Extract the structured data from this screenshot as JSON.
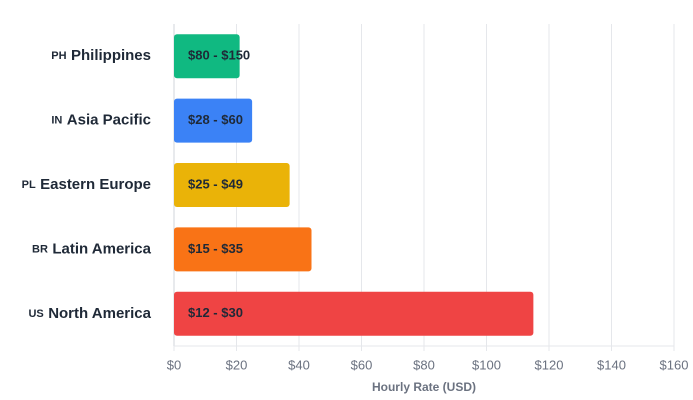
{
  "chart_data": {
    "type": "bar",
    "orientation": "horizontal",
    "codes": [
      "PH",
      "IN",
      "PL",
      "BR",
      "US"
    ],
    "categories": [
      "Philippines",
      "Asia Pacific",
      "Eastern Europe",
      "Latin America",
      "North America"
    ],
    "values": [
      21,
      25,
      37,
      44,
      115
    ],
    "annotations": [
      "$80 - $150",
      "$28 - $60",
      "$25 - $49",
      "$15 - $35",
      "$12 - $30"
    ],
    "colors": [
      "#10b981",
      "#3b82f6",
      "#eab308",
      "#f97316",
      "#ef4444"
    ],
    "xlabel": "Hourly Rate (USD)",
    "xlim": [
      0,
      160
    ],
    "xticks": [
      {
        "value": 0,
        "label": "$0"
      },
      {
        "value": 20,
        "label": "$20"
      },
      {
        "value": 40,
        "label": "$40"
      },
      {
        "value": 60,
        "label": "$60"
      },
      {
        "value": 80,
        "label": "$80"
      },
      {
        "value": 100,
        "label": "$100"
      },
      {
        "value": 120,
        "label": "$120"
      },
      {
        "value": 140,
        "label": "$140"
      },
      {
        "value": 160,
        "label": "$160"
      }
    ],
    "grid": true
  }
}
